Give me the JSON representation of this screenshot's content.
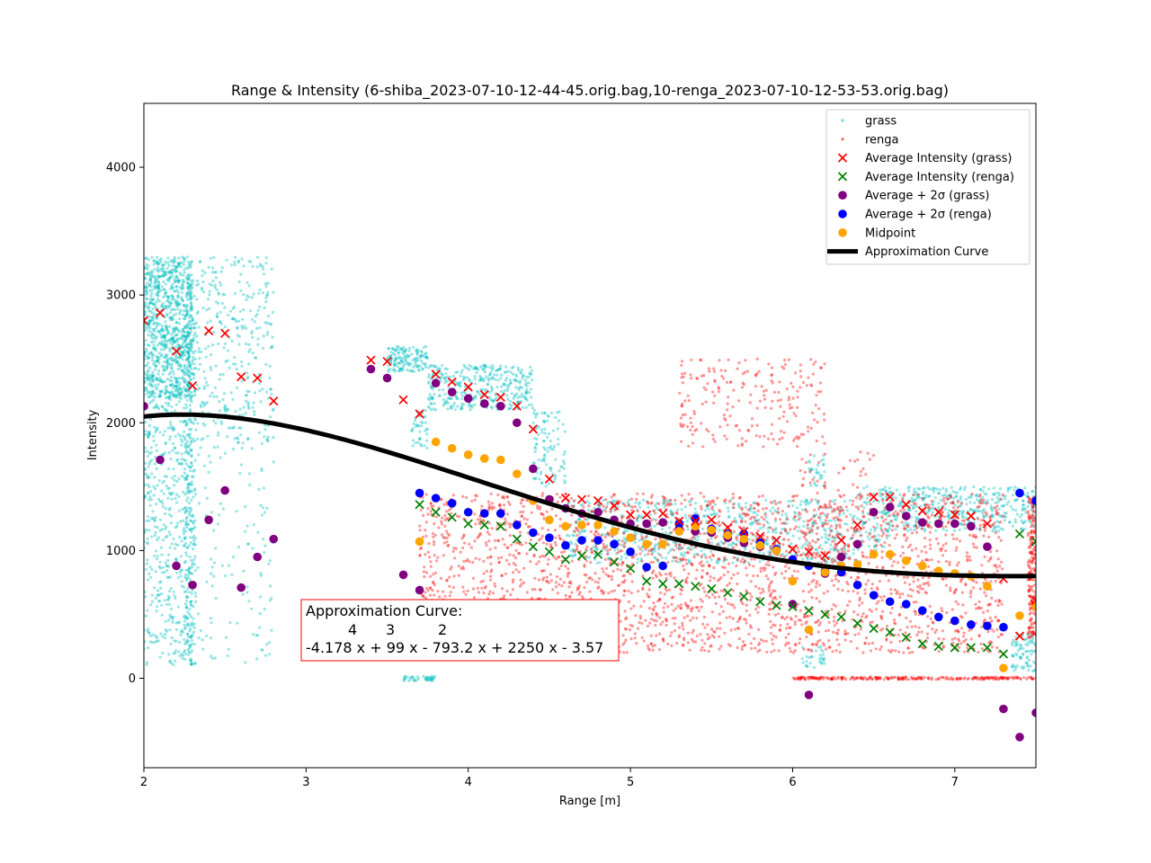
{
  "chart_data": {
    "type": "scatter",
    "title": "Range & Intensity (6-shiba_2023-07-10-12-44-45.orig.bag,10-renga_2023-07-10-12-53-53.orig.bag)",
    "xlabel": "Range [m]",
    "ylabel": "Intensity",
    "xlim": [
      2,
      7.5
    ],
    "ylim": [
      -700,
      4500
    ],
    "xticks": [
      "2",
      "3",
      "4",
      "5",
      "6",
      "7"
    ],
    "yticks": [
      "0",
      "1000",
      "2000",
      "3000",
      "4000"
    ],
    "legend_position": "top-right",
    "colors": {
      "grass": "#00bfbf",
      "renga": "#ff0000",
      "avg_grass": "#ff0000",
      "avg_renga": "#008000",
      "sigma_grass": "#800080",
      "sigma_renga": "#0000ff",
      "midpoint": "#ffa500",
      "curve": "#000000"
    },
    "legend": [
      {
        "key": "grass",
        "label": "grass",
        "marker": "dot",
        "color": "#00bfbf"
      },
      {
        "key": "renga",
        "label": "renga",
        "marker": "dot",
        "color": "#ff0000"
      },
      {
        "key": "avg_grass",
        "label": "Average Intensity (grass)",
        "marker": "x",
        "color": "#ff0000"
      },
      {
        "key": "avg_renga",
        "label": "Average Intensity (renga)",
        "marker": "x",
        "color": "#008000"
      },
      {
        "key": "sigma_grass",
        "label": "Average + 2σ (grass)",
        "marker": "circle",
        "color": "#800080"
      },
      {
        "key": "sigma_renga",
        "label": "Average + 2σ (renga)",
        "marker": "circle",
        "color": "#0000ff"
      },
      {
        "key": "midpoint",
        "label": "Midpoint",
        "marker": "circle",
        "color": "#ffa500"
      },
      {
        "key": "curve",
        "label": "Approximation Curve",
        "marker": "line",
        "color": "#000000"
      }
    ],
    "raw_point_clouds": [
      {
        "name": "grass",
        "regions": [
          {
            "x": [
              2.0,
              2.3
            ],
            "y": [
              2200,
              3300
            ],
            "n": 900
          },
          {
            "x": [
              2.0,
              2.3
            ],
            "y": [
              100,
              2200
            ],
            "n": 500
          },
          {
            "x": [
              2.25,
              2.32
            ],
            "y": [
              100,
              3000
            ],
            "n": 250
          },
          {
            "x": [
              2.3,
              2.8
            ],
            "y": [
              1800,
              3300
            ],
            "n": 350
          },
          {
            "x": [
              2.3,
              2.8
            ],
            "y": [
              100,
              1800
            ],
            "n": 120
          },
          {
            "x": [
              3.5,
              3.75
            ],
            "y": [
              2400,
              2600
            ],
            "n": 140
          },
          {
            "x": [
              3.65,
              3.75
            ],
            "y": [
              1800,
              2100
            ],
            "n": 40
          },
          {
            "x": [
              3.6,
              3.8
            ],
            "y": [
              -20,
              20
            ],
            "n": 40
          },
          {
            "x": [
              3.75,
              4.4
            ],
            "y": [
              2100,
              2450
            ],
            "n": 360
          },
          {
            "x": [
              4.4,
              4.6
            ],
            "y": [
              1500,
              2100
            ],
            "n": 100
          },
          {
            "x": [
              4.6,
              6.4
            ],
            "y": [
              900,
              1400
            ],
            "n": 700
          },
          {
            "x": [
              6.1,
              6.2
            ],
            "y": [
              1500,
              1750
            ],
            "n": 30
          },
          {
            "x": [
              6.05,
              6.2
            ],
            "y": [
              80,
              250
            ],
            "n": 30
          },
          {
            "x": [
              6.4,
              6.6
            ],
            "y": [
              1000,
              1500
            ],
            "n": 80
          },
          {
            "x": [
              6.55,
              7.5
            ],
            "y": [
              1150,
              1500
            ],
            "n": 420
          },
          {
            "x": [
              7.35,
              7.5
            ],
            "y": [
              50,
              350
            ],
            "n": 80
          }
        ]
      },
      {
        "name": "renga",
        "regions": [
          {
            "x": [
              3.7,
              7.3
            ],
            "y": [
              200,
              1450
            ],
            "n": 2500
          },
          {
            "x": [
              5.3,
              6.2
            ],
            "y": [
              1800,
              2500
            ],
            "n": 220
          },
          {
            "x": [
              6.0,
              6.5
            ],
            "y": [
              900,
              1800
            ],
            "n": 90
          },
          {
            "x": [
              6.0,
              7.5
            ],
            "y": [
              -10,
              10
            ],
            "n": 250
          },
          {
            "x": [
              7.45,
              7.5
            ],
            "y": [
              300,
              1450
            ],
            "n": 200
          }
        ]
      }
    ],
    "series": [
      {
        "name": "Average Intensity (grass)",
        "marker": "x",
        "x": [
          2.0,
          2.1,
          2.2,
          2.3,
          2.4,
          2.5,
          2.6,
          2.7,
          2.8,
          3.4,
          3.5,
          3.6,
          3.7,
          3.8,
          3.9,
          4.0,
          4.1,
          4.2,
          4.3,
          4.4,
          4.5,
          4.6,
          4.7,
          4.8,
          4.9,
          5.0,
          5.1,
          5.2,
          5.3,
          5.4,
          5.5,
          5.6,
          5.7,
          5.8,
          5.9,
          6.0,
          6.1,
          6.2,
          6.3,
          6.4,
          6.5,
          6.6,
          6.7,
          6.8,
          6.9,
          7.0,
          7.1,
          7.2,
          7.3,
          7.4,
          7.5
        ],
        "y": [
          2800,
          2860,
          2560,
          2290,
          2720,
          2700,
          2360,
          2350,
          2170,
          2490,
          2480,
          2180,
          2070,
          2380,
          2320,
          2280,
          2220,
          2200,
          2130,
          1950,
          1560,
          1410,
          1400,
          1390,
          1350,
          1280,
          1280,
          1290,
          1230,
          1230,
          1240,
          1180,
          1150,
          1110,
          1080,
          1010,
          990,
          960,
          1080,
          1200,
          1420,
          1420,
          1360,
          1310,
          1300,
          1280,
          1270,
          1210,
          780,
          330,
          610
        ]
      },
      {
        "name": "Average Intensity (renga)",
        "marker": "x",
        "x": [
          3.7,
          3.8,
          3.9,
          4.0,
          4.1,
          4.2,
          4.3,
          4.4,
          4.5,
          4.6,
          4.7,
          4.8,
          4.9,
          5.0,
          5.1,
          5.2,
          5.3,
          5.4,
          5.5,
          5.6,
          5.7,
          5.8,
          5.9,
          6.0,
          6.1,
          6.2,
          6.3,
          6.4,
          6.5,
          6.6,
          6.7,
          6.8,
          6.9,
          7.0,
          7.1,
          7.2,
          7.3,
          7.4,
          7.5
        ],
        "y": [
          1360,
          1300,
          1260,
          1210,
          1200,
          1190,
          1090,
          1030,
          990,
          930,
          960,
          970,
          910,
          860,
          760,
          740,
          740,
          720,
          700,
          670,
          640,
          600,
          570,
          560,
          530,
          500,
          480,
          430,
          390,
          360,
          320,
          270,
          250,
          240,
          240,
          240,
          190,
          1130,
          1070
        ]
      },
      {
        "name": "Average + 2σ (grass)",
        "marker": "circle",
        "x": [
          2.0,
          2.1,
          2.2,
          2.3,
          2.4,
          2.5,
          2.6,
          2.7,
          2.8,
          3.4,
          3.5,
          3.6,
          3.7,
          3.8,
          3.9,
          4.0,
          4.1,
          4.2,
          4.3,
          4.4,
          4.5,
          4.6,
          4.7,
          4.8,
          4.9,
          5.0,
          5.1,
          5.2,
          5.3,
          5.4,
          5.5,
          5.6,
          5.7,
          5.8,
          5.9,
          6.0,
          6.1,
          6.2,
          6.3,
          6.4,
          6.5,
          6.6,
          6.7,
          6.8,
          6.9,
          7.0,
          7.1,
          7.2,
          7.3,
          7.4,
          7.5
        ],
        "y": [
          2130,
          1710,
          880,
          730,
          1240,
          1470,
          710,
          950,
          1090,
          2420,
          2350,
          810,
          690,
          2310,
          2240,
          2190,
          2150,
          2130,
          2000,
          1640,
          1400,
          1330,
          1290,
          1300,
          1240,
          1210,
          1210,
          1220,
          1170,
          1150,
          1140,
          1100,
          1060,
          1030,
          1000,
          580,
          -130,
          820,
          950,
          1050,
          1300,
          1340,
          1270,
          1220,
          1210,
          1210,
          1190,
          1030,
          -240,
          -460,
          -270
        ]
      },
      {
        "name": "Average + 2σ (renga)",
        "marker": "circle",
        "x": [
          3.7,
          3.8,
          3.9,
          4.0,
          4.1,
          4.2,
          4.3,
          4.4,
          4.5,
          4.6,
          4.7,
          4.8,
          4.9,
          5.0,
          5.1,
          5.2,
          5.3,
          5.4,
          5.5,
          5.6,
          5.7,
          5.8,
          5.9,
          6.0,
          6.1,
          6.2,
          6.3,
          6.4,
          6.5,
          6.6,
          6.7,
          6.8,
          6.9,
          7.0,
          7.1,
          7.2,
          7.3,
          7.4,
          7.5
        ],
        "y": [
          1450,
          1410,
          1370,
          1300,
          1290,
          1290,
          1200,
          1140,
          1100,
          1040,
          1080,
          1080,
          1050,
          990,
          870,
          880,
          1210,
          1250,
          1170,
          1130,
          1130,
          1060,
          1010,
          930,
          880,
          840,
          830,
          730,
          650,
          600,
          580,
          530,
          480,
          450,
          420,
          410,
          400,
          1450,
          1390
        ]
      },
      {
        "name": "Midpoint",
        "marker": "circle",
        "x": [
          3.7,
          3.8,
          3.9,
          4.0,
          4.1,
          4.2,
          4.3,
          4.4,
          4.5,
          4.6,
          4.7,
          4.8,
          4.9,
          5.0,
          5.1,
          5.2,
          5.3,
          5.4,
          5.5,
          5.6,
          5.7,
          5.8,
          5.9,
          6.0,
          6.1,
          6.2,
          6.3,
          6.4,
          6.5,
          6.6,
          6.7,
          6.8,
          6.9,
          7.0,
          7.1,
          7.2,
          7.3,
          7.4,
          7.5
        ],
        "y": [
          1070,
          1850,
          1800,
          1750,
          1720,
          1710,
          1600,
          1390,
          1240,
          1190,
          1200,
          1200,
          1150,
          1100,
          1050,
          1050,
          1150,
          1190,
          1160,
          1120,
          1090,
          1040,
          1000,
          760,
          380,
          830,
          880,
          890,
          970,
          970,
          920,
          880,
          840,
          820,
          800,
          720,
          80,
          490,
          560
        ]
      },
      {
        "name": "Approximation Curve",
        "marker": "line",
        "coefficients": [
          -4.178,
          99,
          -793.2,
          2250,
          -3.57
        ]
      }
    ],
    "annotation": {
      "line1": "Approximation Curve:",
      "exponents": [
        "4",
        "3",
        "2"
      ],
      "equation": "-4.178 x + 99 x - 793.2 x + 2250 x - 3.57"
    }
  }
}
